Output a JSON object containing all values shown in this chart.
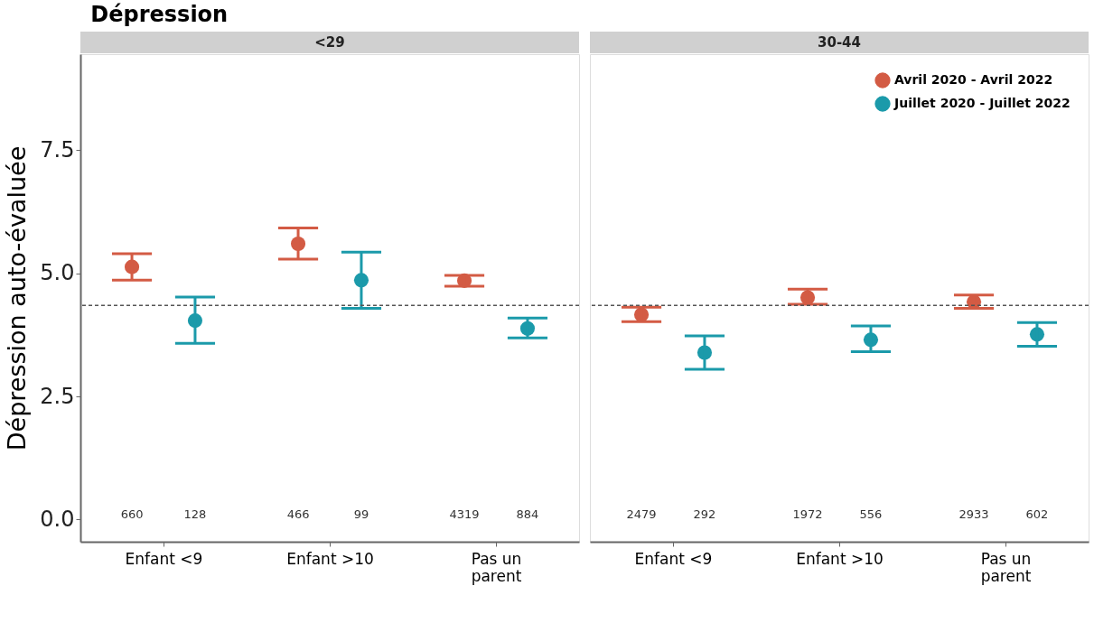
{
  "chart_data": [
    {
      "type": "scatter",
      "title": "Dépression",
      "subtitle": "<29",
      "ylabel": "Dépression auto-évaluée",
      "categories": [
        "Enfant <9",
        "Enfant >10",
        "Pas un parent"
      ],
      "series": [
        {
          "color": "#d35b44",
          "values": [
            5.13,
            5.6,
            4.85
          ],
          "errors": [
            [
              4.86,
              5.4
            ],
            [
              5.29,
              5.92
            ],
            [
              4.74,
              4.96
            ]
          ]
        },
        {
          "color": "#1b9aaa",
          "values": [
            4.04,
            4.86,
            3.88
          ],
          "errors": [
            [
              3.58,
              4.52
            ],
            [
              4.29,
              5.43
            ],
            [
              3.69,
              4.09
            ]
          ]
        }
      ],
      "ylim": [
        -0.45,
        9.45
      ],
      "yticks": [
        {
          "value": 0,
          "label": "0.0"
        },
        2.5,
        {
          "value": 5,
          "label": "5.0"
        },
        7.5
      ],
      "ref_lines": [
        {
          "axis": "y",
          "value": 4.35,
          "color": "#555555",
          "line_style": "dashed"
        }
      ],
      "annotations": [
        "660",
        "128",
        "466",
        "99",
        "4319",
        "884"
      ],
      "marker": "circle",
      "grid": false,
      "legend": false
    },
    {
      "type": "scatter",
      "subtitle": "30-44",
      "categories": [
        "Enfant <9",
        "Enfant >10",
        "Pas un parent"
      ],
      "series": [
        {
          "name": "Avril 2020 - Avril 2022",
          "color": "#d35b44",
          "values": [
            4.16,
            4.51,
            4.42
          ],
          "errors": [
            [
              4.02,
              4.31
            ],
            [
              4.37,
              4.68
            ],
            [
              4.29,
              4.56
            ]
          ]
        },
        {
          "name": "Juillet 2020 - Juillet 2022",
          "color": "#1b9aaa",
          "values": [
            3.39,
            3.65,
            3.76
          ],
          "errors": [
            [
              3.05,
              3.73
            ],
            [
              3.41,
              3.93
            ],
            [
              3.52,
              4.0
            ]
          ]
        }
      ],
      "ylim": [
        -0.45,
        9.45
      ],
      "tick_labels": "x",
      "ref_lines": [
        {
          "axis": "y",
          "value": 4.35,
          "color": "#555555",
          "line_style": "dashed"
        }
      ],
      "annotations": [
        "2479",
        "292",
        "1972",
        "556",
        "2933",
        "602"
      ],
      "marker": "circle",
      "grid": false,
      "legend": "top right"
    }
  ]
}
